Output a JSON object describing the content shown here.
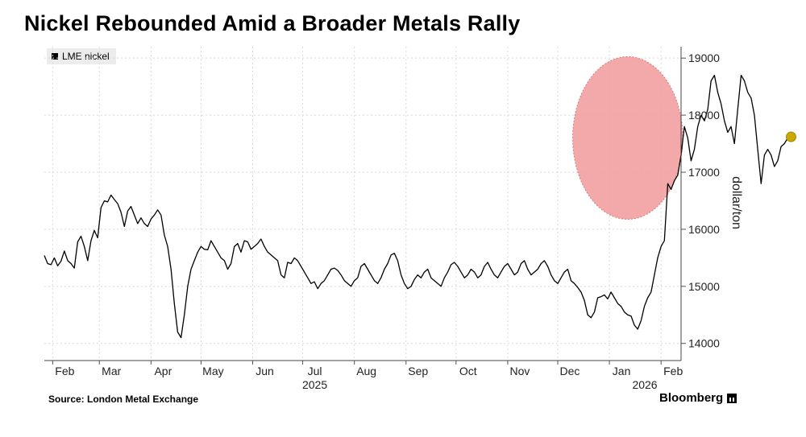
{
  "title": "Nickel Rebounded Amid a Broader Metals Rally",
  "source": "Source: London Metal Exchange",
  "brand": "Bloomberg",
  "colors": {
    "line": "#000000",
    "highlight_fill": "#f19a9a",
    "highlight_stroke": "#d97a7a",
    "marker": "#c9a800",
    "grid": "#d9d9d9"
  },
  "chart_data": {
    "type": "line",
    "title": "Nickel Rebounded Amid a Broader Metals Rally",
    "ylabel": "dollar/ton",
    "xlabel": "",
    "ylim": [
      13700,
      19200
    ],
    "yticks": [
      14000,
      15000,
      16000,
      17000,
      18000,
      19000
    ],
    "x_start": "2025-01-27",
    "x_end": "2026-02-13",
    "month_ticks": [
      {
        "label": "Feb",
        "date": "2025-02-01"
      },
      {
        "label": "Mar",
        "date": "2025-03-01"
      },
      {
        "label": "Apr",
        "date": "2025-04-01"
      },
      {
        "label": "May",
        "date": "2025-05-01"
      },
      {
        "label": "Jun",
        "date": "2025-06-01"
      },
      {
        "label": "Jul",
        "date": "2025-07-01"
      },
      {
        "label": "Aug",
        "date": "2025-08-01"
      },
      {
        "label": "Sep",
        "date": "2025-09-01"
      },
      {
        "label": "Oct",
        "date": "2025-10-01"
      },
      {
        "label": "Nov",
        "date": "2025-11-01"
      },
      {
        "label": "Dec",
        "date": "2025-12-01"
      },
      {
        "label": "Jan",
        "date": "2026-01-01"
      },
      {
        "label": "Feb",
        "date": "2026-02-01"
      }
    ],
    "year_labels": [
      {
        "label": "2025",
        "date": "2025-07-01"
      },
      {
        "label": "2026",
        "date": "2026-01-15"
      }
    ],
    "legend": [
      "LME nickel"
    ],
    "series": [
      {
        "name": "LME nickel",
        "day_step": 2,
        "values": [
          15540,
          15400,
          15380,
          15500,
          15360,
          15440,
          15620,
          15450,
          15400,
          15320,
          15780,
          15880,
          15700,
          15450,
          15800,
          15980,
          15850,
          16380,
          16500,
          16480,
          16600,
          16520,
          16450,
          16300,
          16050,
          16320,
          16400,
          16250,
          16100,
          16200,
          16100,
          16050,
          16180,
          16250,
          16340,
          16250,
          15900,
          15700,
          15300,
          14700,
          14200,
          14100,
          14500,
          15000,
          15300,
          15450,
          15600,
          15700,
          15650,
          15640,
          15800,
          15700,
          15600,
          15500,
          15450,
          15300,
          15400,
          15700,
          15750,
          15600,
          15800,
          15780,
          15650,
          15700,
          15750,
          15830,
          15700,
          15600,
          15550,
          15500,
          15450,
          15200,
          15150,
          15420,
          15400,
          15500,
          15450,
          15350,
          15250,
          15150,
          15050,
          15080,
          14960,
          15050,
          15100,
          15200,
          15300,
          15320,
          15280,
          15200,
          15100,
          15050,
          15000,
          15100,
          15150,
          15350,
          15400,
          15300,
          15200,
          15100,
          15050,
          15150,
          15300,
          15400,
          15550,
          15580,
          15450,
          15200,
          15050,
          14960,
          15000,
          15120,
          15200,
          15150,
          15250,
          15300,
          15150,
          15100,
          15050,
          15000,
          15150,
          15250,
          15380,
          15420,
          15350,
          15250,
          15150,
          15200,
          15300,
          15250,
          15150,
          15200,
          15350,
          15420,
          15300,
          15200,
          15150,
          15250,
          15350,
          15400,
          15300,
          15200,
          15250,
          15400,
          15450,
          15300,
          15200,
          15250,
          15300,
          15400,
          15450,
          15350,
          15200,
          15100,
          15050,
          15150,
          15250,
          15300,
          15100,
          15050,
          14980,
          14900,
          14750,
          14500,
          14450,
          14550,
          14800,
          14820,
          14850,
          14780,
          14900,
          14800,
          14700,
          14650,
          14550,
          14500,
          14480,
          14320,
          14250,
          14400,
          14650,
          14800,
          14900,
          15200,
          15500,
          15700,
          15800,
          16800,
          16700,
          16850,
          16950,
          17300,
          17800,
          17600,
          17200,
          17400,
          17800,
          18000,
          17900,
          18100,
          18600,
          18700,
          18400,
          18200,
          17900,
          17700,
          17800,
          17500,
          18100,
          18700,
          18600,
          18400,
          18300,
          18000,
          17400,
          16800,
          17300,
          17400,
          17300,
          17100,
          17200,
          17450,
          17500,
          17600,
          17620
        ]
      }
    ],
    "annotations": [
      {
        "type": "highlight-ellipse",
        "from": "2025-12-10",
        "to": "2026-02-14",
        "center_value": 17600
      },
      {
        "type": "end-marker",
        "date": "2026-02-13",
        "value": 17620
      }
    ]
  }
}
